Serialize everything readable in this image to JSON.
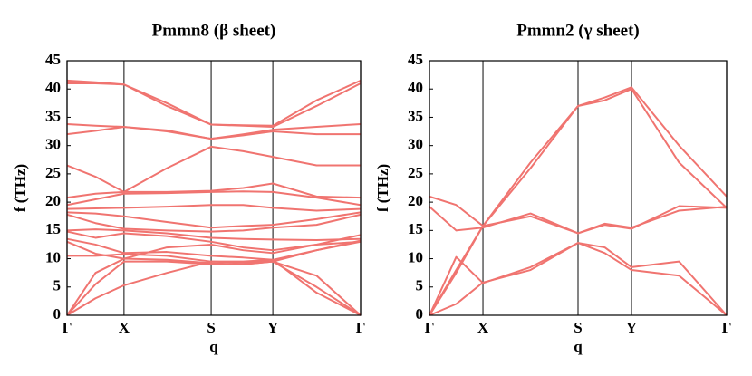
{
  "chart_data": [
    {
      "type": "line",
      "title": "Pmmn8 (β sheet)",
      "xlabel": "q",
      "ylabel": "f (THz)",
      "color": "#f07470",
      "xlim": [
        0,
        1
      ],
      "ylim": [
        0,
        45
      ],
      "xticks": [
        {
          "value": 0,
          "label": "Γ"
        },
        {
          "value": 0.194,
          "label": "X"
        },
        {
          "value": 0.491,
          "label": "S"
        },
        {
          "value": 0.701,
          "label": "Y"
        },
        {
          "value": 1,
          "label": "Γ"
        }
      ],
      "yticks": [
        0,
        5,
        10,
        15,
        20,
        25,
        30,
        35,
        40,
        45
      ],
      "x": [
        0,
        0.097,
        0.194,
        0.34,
        0.491,
        0.6,
        0.701,
        0.85,
        1
      ],
      "series": [
        {
          "values": [
            41.5,
            41.2,
            40.8,
            37.5,
            33.7,
            33.6,
            33.5,
            38,
            41.5
          ]
        },
        {
          "values": [
            41,
            41,
            40.8,
            37,
            33.7,
            33.5,
            33.3,
            37,
            41
          ]
        },
        {
          "values": [
            33.8,
            33.5,
            33.3,
            32.5,
            31.2,
            32,
            32.8,
            33.3,
            33.8
          ]
        },
        {
          "values": [
            32,
            32.6,
            33.3,
            32.7,
            31.2,
            31.8,
            32.5,
            32,
            32
          ]
        },
        {
          "values": [
            26.5,
            24.5,
            21.8,
            26,
            29.8,
            29,
            28,
            26.5,
            26.5
          ]
        },
        {
          "values": [
            20.8,
            21.5,
            21.8,
            21.8,
            22,
            22.5,
            23.3,
            21,
            20.8
          ]
        },
        {
          "values": [
            19.5,
            20.5,
            21.5,
            21.6,
            21.8,
            21.9,
            21.8,
            20.8,
            19.5
          ]
        },
        {
          "values": [
            18.8,
            18.9,
            19,
            19.2,
            19.5,
            19.5,
            19,
            18.5,
            18.8
          ]
        },
        {
          "values": [
            18.2,
            18,
            17.5,
            16.5,
            15.5,
            15.8,
            16,
            17,
            18.2
          ]
        },
        {
          "values": [
            17.8,
            16.3,
            15.3,
            15,
            14.8,
            15,
            15.5,
            16,
            17.8
          ]
        },
        {
          "values": [
            15,
            15.2,
            15,
            14.5,
            13.7,
            13.5,
            13.4,
            13.3,
            13.5
          ]
        },
        {
          "values": [
            14.8,
            13.7,
            14.5,
            14,
            13,
            12,
            11.5,
            12.5,
            13
          ]
        },
        {
          "values": [
            13.5,
            12.5,
            11,
            11.2,
            10.5,
            10.2,
            9.8,
            11.5,
            13.2
          ]
        },
        {
          "values": [
            13,
            10.9,
            10,
            12,
            12.5,
            11.5,
            11,
            12.5,
            14.2
          ]
        },
        {
          "values": [
            10.5,
            10.5,
            10.8,
            10.5,
            9.5,
            9.3,
            9.5,
            11.5,
            13
          ]
        },
        {
          "values": [
            0,
            7.5,
            10,
            9.8,
            9.2,
            9,
            9.5,
            7,
            0
          ]
        },
        {
          "values": [
            0,
            5.5,
            9.5,
            9.5,
            9,
            9,
            9.5,
            5,
            0
          ]
        },
        {
          "values": [
            0,
            3,
            5.3,
            7.5,
            9.5,
            9.5,
            9.8,
            4,
            0
          ]
        }
      ]
    },
    {
      "type": "line",
      "title": "Pmmn2 (γ sheet)",
      "xlabel": "q",
      "ylabel": "f (THz)",
      "color": "#f07470",
      "xlim": [
        0,
        1
      ],
      "ylim": [
        0,
        45
      ],
      "xticks": [
        {
          "value": 0,
          "label": "Γ"
        },
        {
          "value": 0.18,
          "label": "X"
        },
        {
          "value": 0.5,
          "label": "S"
        },
        {
          "value": 0.68,
          "label": "Y"
        },
        {
          "value": 1,
          "label": "Γ"
        }
      ],
      "yticks": [
        0,
        5,
        10,
        15,
        20,
        25,
        30,
        35,
        40,
        45
      ],
      "x": [
        0,
        0.09,
        0.18,
        0.34,
        0.5,
        0.59,
        0.68,
        0.84,
        1
      ],
      "series": [
        {
          "values": [
            0,
            8,
            15.8,
            27,
            37,
            38.5,
            40.3,
            30,
            21
          ]
        },
        {
          "values": [
            0,
            7.5,
            15.8,
            26,
            37,
            38,
            40,
            27,
            19
          ]
        },
        {
          "values": [
            21,
            19.5,
            15.8,
            17.5,
            14.5,
            16,
            15.3,
            19.3,
            19
          ]
        },
        {
          "values": [
            19.2,
            15,
            15.5,
            18,
            14.5,
            16.2,
            15.5,
            18.5,
            19.2
          ]
        },
        {
          "values": [
            0,
            10.3,
            5.7,
            8.5,
            12.8,
            12,
            8.5,
            9.5,
            0
          ]
        },
        {
          "values": [
            0,
            2,
            5.8,
            8,
            12.8,
            11,
            8,
            7,
            0
          ]
        }
      ]
    }
  ]
}
